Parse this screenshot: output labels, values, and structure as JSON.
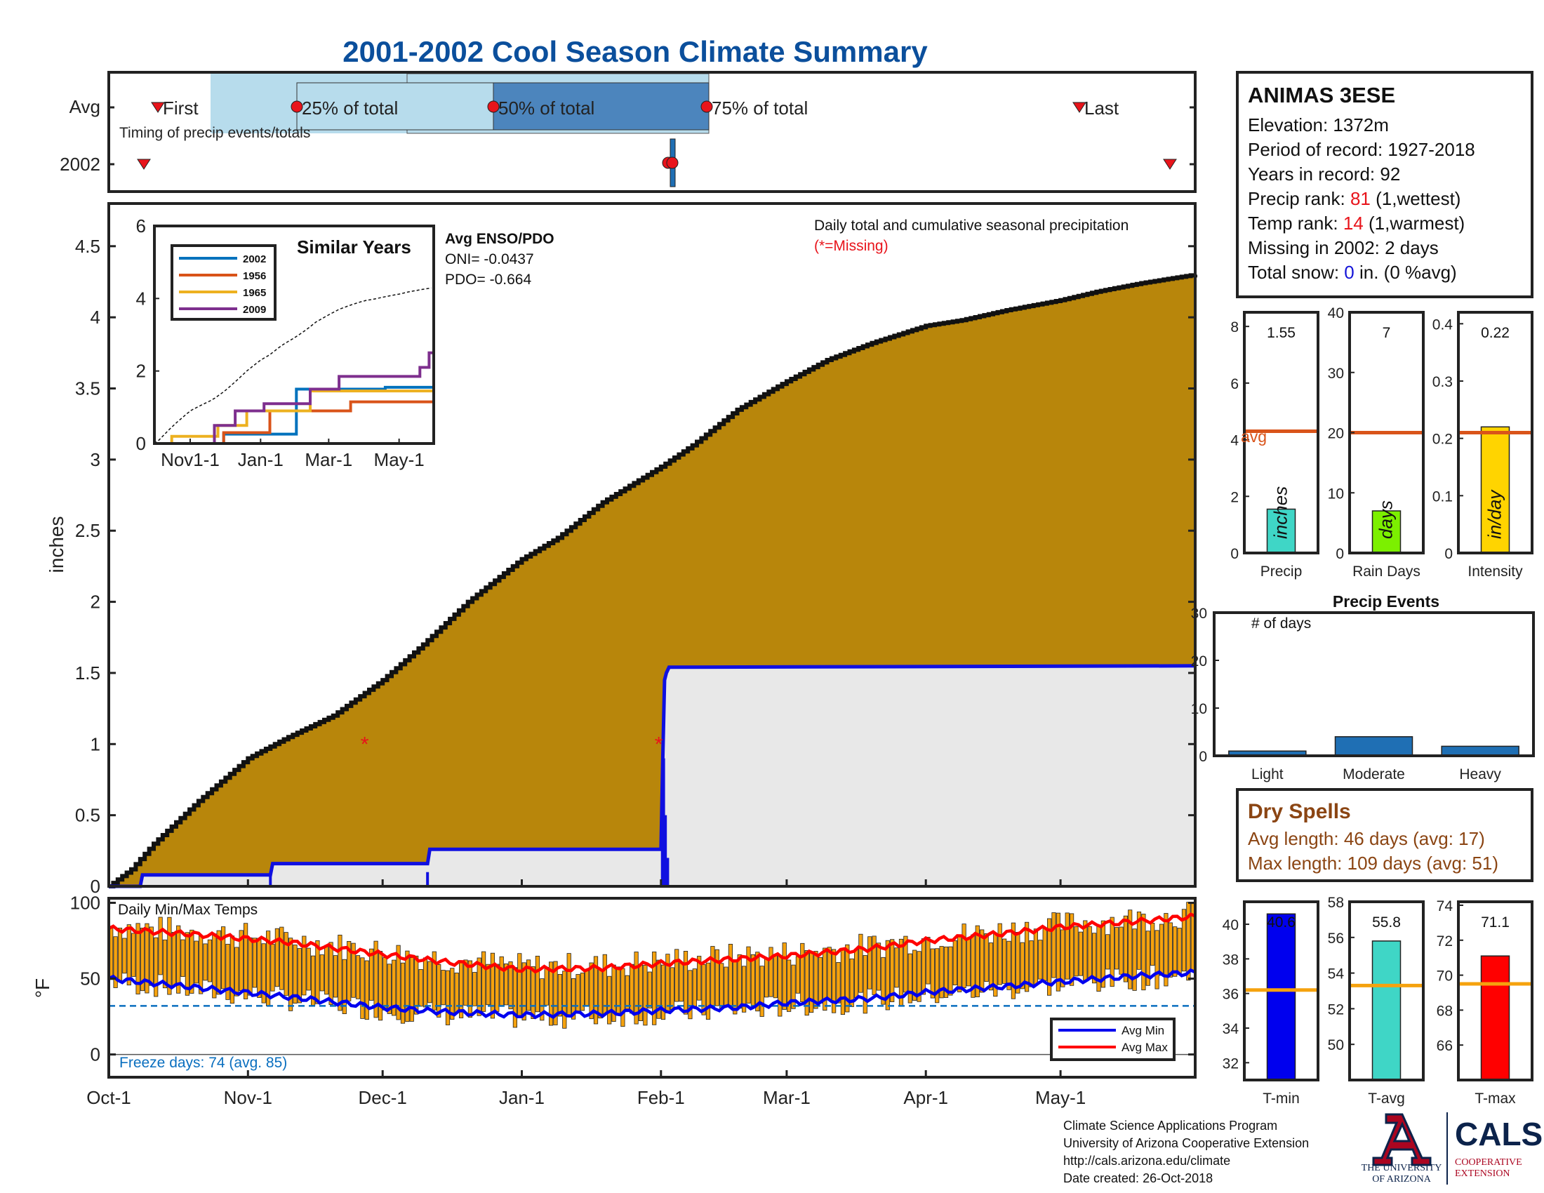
{
  "title": "2001-2002 Cool Season Climate Summary",
  "colors": {
    "title": "#0b4f9c",
    "cum_fill": "#b8860b",
    "missing_red": "#e8141b",
    "snow_blue": "#1414d8",
    "dry_brown": "#8b4513",
    "avg_line": "#d9541a",
    "freeze_blue": "#0a6fbf"
  },
  "timing_panel": {
    "rows": [
      "Avg",
      "2002"
    ],
    "caption": "Timing of precip events/totals",
    "labels": {
      "first": "First",
      "p25": "25% of total",
      "p50": "50% of total",
      "p75": "75% of total",
      "last": "Last"
    }
  },
  "station": {
    "name": "ANIMAS 3ESE",
    "elevation": "Elevation: 1372m",
    "period": "Period of record: 1927-2018",
    "years": "Years in record: 92",
    "precip_rank_label": "Precip rank: ",
    "precip_rank_value": "81",
    "precip_rank_note": " (1,wettest)",
    "temp_rank_label": "Temp rank: ",
    "temp_rank_value": "14",
    "temp_rank_note": " (1,warmest)",
    "missing": "Missing in 2002: 2 days",
    "snow_label": "Total snow: ",
    "snow_value": "0",
    "snow_note": " in. (0 %avg)"
  },
  "main_text": {
    "ylabel": "inches",
    "daily_title": "Daily total and cumulative seasonal precipitation",
    "missing_note": "(*=Missing)",
    "enso_title": "Avg ENSO/PDO",
    "oni": "ONI= -0.0437",
    "pdo": "PDO= -0.664",
    "similar_title": "Similar Years"
  },
  "summary_bars": {
    "avg_label": "avg",
    "panels": [
      {
        "label": "Precip",
        "unit": "inches",
        "value": 1.55,
        "value_text": "1.55",
        "avg": 4.3,
        "ylim": [
          0,
          8.5
        ],
        "ticks": [
          "0",
          "2",
          "4",
          "6",
          "8"
        ],
        "tick_values": [
          0,
          2,
          4,
          6,
          8
        ],
        "color": "#3fd6c6"
      },
      {
        "label": "Rain Days",
        "unit": "days",
        "value": 7,
        "value_text": "7",
        "avg": 20,
        "ylim": [
          0,
          40
        ],
        "ticks": [
          "0",
          "10",
          "20",
          "30",
          "40"
        ],
        "tick_values": [
          0,
          10,
          20,
          30,
          40
        ],
        "color": "#7cf000"
      },
      {
        "label": "Intensity",
        "unit": "in/day",
        "value": 0.22,
        "value_text": "0.22",
        "avg": 0.21,
        "ylim": [
          0,
          0.42
        ],
        "ticks": [
          "0",
          "0.1",
          "0.2",
          "0.3",
          "0.4"
        ],
        "tick_values": [
          0,
          0.1,
          0.2,
          0.3,
          0.4
        ],
        "color": "#ffd400"
      }
    ]
  },
  "precip_events": {
    "title": "Precip Events",
    "ylabel": "# of days",
    "ylim": [
      0,
      30
    ],
    "ticks": [
      "0",
      "10",
      "20",
      "30"
    ],
    "tick_values": [
      0,
      10,
      20,
      30
    ],
    "categories": [
      "Light",
      "Moderate",
      "Heavy"
    ],
    "values": [
      1,
      4,
      2
    ]
  },
  "dry_spells": {
    "title": "Dry Spells",
    "avg": "Avg length: 46 days (avg: 17)",
    "max": "Max length: 109 days (avg: 51)"
  },
  "temp_panel": {
    "title": "Daily Min/Max Temps",
    "ylabel": "°F",
    "yticks": [
      "0",
      "50",
      "100"
    ],
    "freeze": "Freeze days: 74 (avg. 85)",
    "legend": [
      "Avg Min",
      "Avg Max"
    ]
  },
  "temp_bars": {
    "panels": [
      {
        "label": "T-min",
        "value": 40.6,
        "value_text": "40.6",
        "avg": 36.2,
        "ylim": [
          31,
          41.3
        ],
        "ticks": [
          "32",
          "34",
          "36",
          "38",
          "40"
        ],
        "tick_values": [
          32,
          34,
          36,
          38,
          40
        ],
        "color": "#0000ee"
      },
      {
        "label": "T-avg",
        "value": 55.8,
        "value_text": "55.8",
        "avg": 53.3,
        "ylim": [
          48,
          58
        ],
        "ticks": [
          "50",
          "52",
          "54",
          "56",
          "58"
        ],
        "tick_values": [
          50,
          52,
          54,
          56,
          58
        ],
        "color": "#3fd6c6"
      },
      {
        "label": "T-max",
        "value": 71.1,
        "value_text": "71.1",
        "avg": 69.5,
        "ylim": [
          64,
          74.2
        ],
        "ticks": [
          "66",
          "68",
          "70",
          "72",
          "74"
        ],
        "tick_values": [
          66,
          68,
          70,
          72,
          74
        ],
        "color": "#ff0000"
      }
    ]
  },
  "footer": {
    "lines": [
      "Climate Science Applications Program",
      "University of Arizona Cooperative Extension",
      "http://cals.arizona.edu/climate",
      " Date created: 26-Oct-2018"
    ],
    "ua_line1": "THE UNIVERSITY",
    "ua_line2": "OF ARIZONA",
    "cals": "CALS",
    "coop1": "COOPERATIVE",
    "coop2": "EXTENSION"
  },
  "chart_data": [
    {
      "type": "area",
      "name": "cumulative-precipitation",
      "xlabel": "",
      "ylabel": "inches",
      "x_ticks": [
        "Oct-1",
        "Nov-1",
        "Dec-1",
        "Jan-1",
        "Feb-1",
        "Mar-1",
        "Apr-1",
        "May-1"
      ],
      "x_tick_days": [
        0,
        31,
        61,
        92,
        123,
        151,
        182,
        212
      ],
      "ylim": [
        0,
        4.8
      ],
      "y_ticks": [
        "0",
        "0.5",
        "1",
        "1.5",
        "2",
        "2.5",
        "3",
        "3.5",
        "4",
        "4.5"
      ],
      "y_tick_values": [
        0,
        0.5,
        1,
        1.5,
        2,
        2.5,
        3,
        3.5,
        4,
        4.5
      ],
      "avg_cumulative": {
        "days": [
          0,
          5,
          10,
          20,
          31,
          40,
          50,
          61,
          70,
          80,
          92,
          100,
          110,
          123,
          130,
          140,
          151,
          160,
          170,
          182,
          190,
          200,
          212,
          220,
          230,
          242
        ],
        "values": [
          0,
          0.12,
          0.3,
          0.6,
          0.9,
          1.05,
          1.2,
          1.45,
          1.7,
          2.0,
          2.3,
          2.45,
          2.7,
          2.95,
          3.1,
          3.35,
          3.55,
          3.7,
          3.82,
          3.94,
          3.98,
          4.05,
          4.12,
          4.18,
          4.24,
          4.3
        ]
      },
      "season_2002": {
        "days": [
          0,
          7,
          7.5,
          36,
          36.5,
          71,
          71.5,
          123,
          123.4,
          123.8,
          124.2,
          124.8,
          242
        ],
        "values": [
          0,
          0,
          0.08,
          0.08,
          0.16,
          0.16,
          0.26,
          0.26,
          0.9,
          1.45,
          1.5,
          1.54,
          1.55
        ]
      },
      "missing_markers": [
        {
          "day": 57,
          "value": 1
        },
        {
          "day": 122.5,
          "value": 1
        }
      ]
    },
    {
      "type": "line",
      "name": "similar-years",
      "x_ticks": [
        "Nov1-1",
        "Jan-1",
        "Mar-1",
        "May-1"
      ],
      "x_tick_days": [
        31,
        92,
        151,
        212
      ],
      "ylim": [
        0,
        6
      ],
      "y_ticks": [
        "0",
        "2",
        "4",
        "6"
      ],
      "y_tick_values": [
        0,
        2,
        4,
        6
      ],
      "series": [
        {
          "name": "2002",
          "color": "#0072bd",
          "days": [
            0,
            60,
            60,
            123,
            123,
            200,
            200,
            242
          ],
          "values": [
            0,
            0,
            0.26,
            0.26,
            1.5,
            1.5,
            1.55,
            1.55
          ]
        },
        {
          "name": "1956",
          "color": "#d95319",
          "days": [
            0,
            60,
            60,
            100,
            100,
            170,
            170,
            242
          ],
          "values": [
            0,
            0,
            0.3,
            0.3,
            0.9,
            0.9,
            1.15,
            1.15
          ]
        },
        {
          "name": "1965",
          "color": "#edb120",
          "days": [
            0,
            15,
            15,
            55,
            55,
            80,
            80,
            135,
            135,
            242
          ],
          "values": [
            0,
            0,
            0.2,
            0.2,
            0.5,
            0.5,
            0.9,
            0.9,
            1.45,
            1.45
          ]
        },
        {
          "name": "2009",
          "color": "#7e2f8e",
          "days": [
            0,
            52,
            52,
            70,
            70,
            95,
            95,
            135,
            135,
            160,
            160,
            230,
            230,
            238,
            238,
            242
          ],
          "values": [
            0,
            0,
            0.5,
            0.5,
            0.9,
            0.9,
            1.1,
            1.1,
            1.5,
            1.5,
            1.85,
            1.85,
            2.1,
            2.1,
            2.5,
            2.5
          ]
        }
      ]
    },
    {
      "type": "bar",
      "name": "daily-min-max-temps",
      "ylim": [
        -15,
        103
      ],
      "freeze_line": 32,
      "avg_max": {
        "days": [
          0,
          20,
          40,
          61,
          75,
          92,
          110,
          123,
          140,
          151,
          170,
          182,
          200,
          212,
          230,
          242
        ],
        "values": [
          83,
          79,
          74,
          66,
          61,
          56,
          57,
          60,
          63,
          65,
          70,
          75,
          80,
          84,
          88,
          91
        ]
      },
      "avg_min": {
        "days": [
          0,
          20,
          40,
          61,
          75,
          92,
          110,
          123,
          140,
          151,
          170,
          182,
          200,
          212,
          230,
          242
        ],
        "values": [
          50,
          44,
          38,
          31,
          28,
          26,
          27,
          29,
          31,
          34,
          37,
          41,
          45,
          48,
          52,
          54
        ]
      }
    }
  ]
}
